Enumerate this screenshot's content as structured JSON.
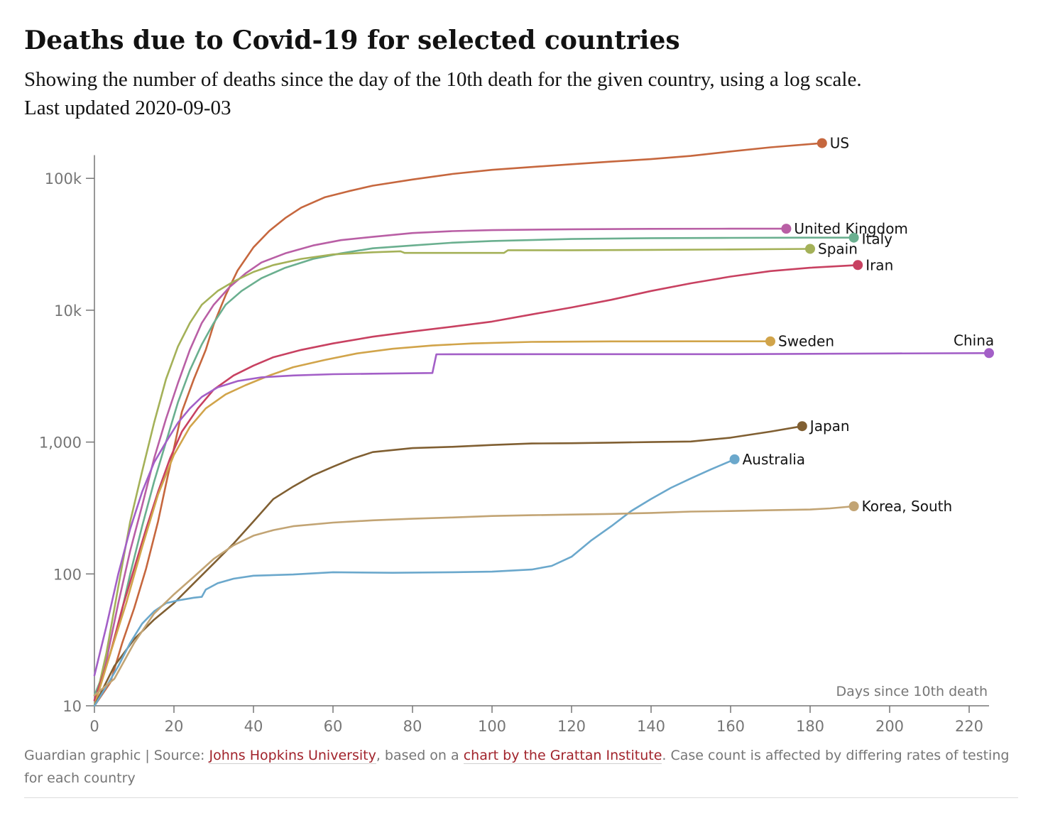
{
  "header": {
    "title": "Deaths due to Covid-19 for selected countries",
    "subtitle": "Showing the number of deaths since the day of the 10th death for the given country, using a log scale.",
    "updated": "Last updated 2020-09-03"
  },
  "footer": {
    "prefix": "Guardian graphic | Source: ",
    "source_link": "Johns Hopkins University",
    "middle": ", based on a ",
    "chart_link": "chart by the Grattan Institute",
    "suffix": ". Case count is affected by differing rates of testing for each country"
  },
  "chart_data": {
    "type": "line",
    "title": "Deaths due to Covid-19 for selected countries",
    "xlabel": "Days since 10th death",
    "ylabel": "",
    "xlim": [
      0,
      225
    ],
    "ylim": [
      10,
      150000
    ],
    "yscale": "log",
    "grid": false,
    "x_ticks": [
      0,
      20,
      40,
      60,
      80,
      100,
      120,
      140,
      160,
      180,
      200,
      220
    ],
    "x_tick_labels": [
      "0",
      "20",
      "40",
      "60",
      "80",
      "100",
      "120",
      "140",
      "160",
      "180",
      "200",
      "220"
    ],
    "y_ticks": [
      10,
      100,
      1000,
      10000,
      100000
    ],
    "y_tick_labels": [
      "10",
      "100",
      "1,000",
      "10k",
      "100k"
    ],
    "series": [
      {
        "name": "US",
        "color": "#c6673e",
        "label_pos": "right",
        "points": [
          [
            0,
            10
          ],
          [
            4,
            15
          ],
          [
            7,
            30
          ],
          [
            10,
            55
          ],
          [
            13,
            110
          ],
          [
            16,
            250
          ],
          [
            18,
            480
          ],
          [
            20,
            900
          ],
          [
            22,
            1700
          ],
          [
            25,
            3000
          ],
          [
            28,
            5000
          ],
          [
            30,
            7800
          ],
          [
            33,
            13000
          ],
          [
            36,
            20000
          ],
          [
            40,
            30000
          ],
          [
            44,
            40000
          ],
          [
            48,
            50000
          ],
          [
            52,
            60000
          ],
          [
            58,
            72000
          ],
          [
            64,
            80000
          ],
          [
            70,
            88000
          ],
          [
            80,
            98000
          ],
          [
            90,
            108000
          ],
          [
            100,
            116000
          ],
          [
            110,
            122000
          ],
          [
            120,
            128000
          ],
          [
            130,
            134000
          ],
          [
            140,
            140000
          ],
          [
            150,
            148000
          ],
          [
            160,
            160000
          ],
          [
            170,
            172000
          ],
          [
            183,
            185000
          ]
        ]
      },
      {
        "name": "United Kingdom",
        "color": "#b95fa5",
        "label_pos": "right",
        "points": [
          [
            0,
            11
          ],
          [
            3,
            22
          ],
          [
            6,
            60
          ],
          [
            9,
            150
          ],
          [
            12,
            330
          ],
          [
            15,
            750
          ],
          [
            18,
            1500
          ],
          [
            21,
            2800
          ],
          [
            24,
            5000
          ],
          [
            27,
            8000
          ],
          [
            30,
            11000
          ],
          [
            34,
            15000
          ],
          [
            38,
            19000
          ],
          [
            42,
            23000
          ],
          [
            48,
            27000
          ],
          [
            55,
            31000
          ],
          [
            62,
            34000
          ],
          [
            70,
            36000
          ],
          [
            80,
            38500
          ],
          [
            90,
            39800
          ],
          [
            100,
            40500
          ],
          [
            120,
            41100
          ],
          [
            140,
            41400
          ],
          [
            160,
            41500
          ],
          [
            174,
            41500
          ]
        ]
      },
      {
        "name": "Italy",
        "color": "#6aaf8f",
        "label_pos": "right-offset",
        "points": [
          [
            0,
            12
          ],
          [
            3,
            20
          ],
          [
            6,
            40
          ],
          [
            9,
            100
          ],
          [
            12,
            230
          ],
          [
            15,
            500
          ],
          [
            18,
            1000
          ],
          [
            21,
            2000
          ],
          [
            24,
            3500
          ],
          [
            27,
            5500
          ],
          [
            30,
            8000
          ],
          [
            33,
            11000
          ],
          [
            37,
            14000
          ],
          [
            42,
            17500
          ],
          [
            48,
            21000
          ],
          [
            55,
            24500
          ],
          [
            62,
            27000
          ],
          [
            70,
            29500
          ],
          [
            80,
            31000
          ],
          [
            90,
            32500
          ],
          [
            100,
            33500
          ],
          [
            120,
            34700
          ],
          [
            140,
            35200
          ],
          [
            160,
            35400
          ],
          [
            180,
            35500
          ],
          [
            191,
            35500
          ]
        ]
      },
      {
        "name": "Spain",
        "color": "#a4b158",
        "label_pos": "right",
        "points": [
          [
            0,
            10
          ],
          [
            3,
            25
          ],
          [
            6,
            80
          ],
          [
            9,
            250
          ],
          [
            12,
            600
          ],
          [
            15,
            1400
          ],
          [
            18,
            3000
          ],
          [
            21,
            5300
          ],
          [
            24,
            8000
          ],
          [
            27,
            11000
          ],
          [
            31,
            14000
          ],
          [
            35,
            16500
          ],
          [
            40,
            19500
          ],
          [
            45,
            22000
          ],
          [
            52,
            24500
          ],
          [
            60,
            26500
          ],
          [
            70,
            27500
          ],
          [
            77,
            28000
          ],
          [
            78,
            27200
          ],
          [
            103,
            27200
          ],
          [
            104,
            28500
          ],
          [
            120,
            28500
          ],
          [
            140,
            28700
          ],
          [
            160,
            28900
          ],
          [
            180,
            29200
          ]
        ]
      },
      {
        "name": "Iran",
        "color": "#c84161",
        "label_pos": "right",
        "points": [
          [
            0,
            11
          ],
          [
            4,
            25
          ],
          [
            7,
            55
          ],
          [
            10,
            110
          ],
          [
            13,
            220
          ],
          [
            16,
            420
          ],
          [
            19,
            750
          ],
          [
            22,
            1200
          ],
          [
            26,
            1800
          ],
          [
            30,
            2500
          ],
          [
            35,
            3200
          ],
          [
            40,
            3800
          ],
          [
            45,
            4400
          ],
          [
            52,
            5000
          ],
          [
            60,
            5600
          ],
          [
            70,
            6300
          ],
          [
            80,
            6900
          ],
          [
            90,
            7500
          ],
          [
            100,
            8200
          ],
          [
            110,
            9300
          ],
          [
            120,
            10500
          ],
          [
            130,
            12000
          ],
          [
            140,
            14000
          ],
          [
            150,
            16000
          ],
          [
            160,
            18000
          ],
          [
            170,
            19800
          ],
          [
            180,
            21000
          ],
          [
            192,
            22000
          ]
        ]
      },
      {
        "name": "Sweden",
        "color": "#d1a44a",
        "label_pos": "right",
        "points": [
          [
            0,
            10
          ],
          [
            4,
            25
          ],
          [
            8,
            60
          ],
          [
            12,
            160
          ],
          [
            16,
            400
          ],
          [
            20,
            800
          ],
          [
            24,
            1300
          ],
          [
            28,
            1800
          ],
          [
            33,
            2300
          ],
          [
            38,
            2700
          ],
          [
            44,
            3200
          ],
          [
            50,
            3700
          ],
          [
            58,
            4200
          ],
          [
            66,
            4700
          ],
          [
            75,
            5100
          ],
          [
            85,
            5400
          ],
          [
            95,
            5600
          ],
          [
            110,
            5750
          ],
          [
            130,
            5800
          ],
          [
            150,
            5810
          ],
          [
            170,
            5810
          ]
        ]
      },
      {
        "name": "China",
        "color": "#a35fc7",
        "label_pos": "above",
        "points": [
          [
            0,
            17
          ],
          [
            3,
            40
          ],
          [
            6,
            100
          ],
          [
            9,
            220
          ],
          [
            12,
            420
          ],
          [
            15,
            700
          ],
          [
            18,
            1000
          ],
          [
            21,
            1400
          ],
          [
            24,
            1800
          ],
          [
            27,
            2200
          ],
          [
            31,
            2600
          ],
          [
            36,
            2900
          ],
          [
            42,
            3100
          ],
          [
            50,
            3200
          ],
          [
            60,
            3270
          ],
          [
            70,
            3300
          ],
          [
            85,
            3340
          ],
          [
            86,
            4630
          ],
          [
            120,
            4640
          ],
          [
            160,
            4640
          ],
          [
            200,
            4700
          ],
          [
            225,
            4730
          ]
        ]
      },
      {
        "name": "Japan",
        "color": "#805f32",
        "label_pos": "right",
        "points": [
          [
            0,
            10
          ],
          [
            5,
            20
          ],
          [
            10,
            32
          ],
          [
            15,
            45
          ],
          [
            20,
            60
          ],
          [
            25,
            85
          ],
          [
            30,
            120
          ],
          [
            35,
            170
          ],
          [
            40,
            250
          ],
          [
            45,
            370
          ],
          [
            50,
            460
          ],
          [
            55,
            560
          ],
          [
            60,
            650
          ],
          [
            65,
            750
          ],
          [
            70,
            840
          ],
          [
            80,
            900
          ],
          [
            90,
            920
          ],
          [
            100,
            950
          ],
          [
            110,
            975
          ],
          [
            120,
            980
          ],
          [
            130,
            990
          ],
          [
            140,
            1000
          ],
          [
            150,
            1010
          ],
          [
            160,
            1080
          ],
          [
            170,
            1200
          ],
          [
            178,
            1320
          ]
        ]
      },
      {
        "name": "Australia",
        "color": "#6ba8cc",
        "label_pos": "right",
        "points": [
          [
            0,
            10
          ],
          [
            3,
            14
          ],
          [
            6,
            20
          ],
          [
            9,
            30
          ],
          [
            12,
            42
          ],
          [
            15,
            52
          ],
          [
            18,
            60
          ],
          [
            21,
            63
          ],
          [
            25,
            66
          ],
          [
            27,
            67
          ],
          [
            28,
            76
          ],
          [
            31,
            85
          ],
          [
            35,
            92
          ],
          [
            40,
            97
          ],
          [
            50,
            99
          ],
          [
            60,
            103
          ],
          [
            75,
            102
          ],
          [
            90,
            103
          ],
          [
            100,
            104
          ],
          [
            110,
            108
          ],
          [
            115,
            115
          ],
          [
            120,
            135
          ],
          [
            125,
            180
          ],
          [
            130,
            230
          ],
          [
            135,
            300
          ],
          [
            140,
            370
          ],
          [
            145,
            450
          ],
          [
            150,
            530
          ],
          [
            155,
            620
          ],
          [
            161,
            740
          ]
        ]
      },
      {
        "name": "Korea, South",
        "color": "#c2a474",
        "label_pos": "right",
        "points": [
          [
            0,
            12
          ],
          [
            5,
            16
          ],
          [
            10,
            30
          ],
          [
            15,
            50
          ],
          [
            20,
            70
          ],
          [
            25,
            95
          ],
          [
            30,
            130
          ],
          [
            35,
            165
          ],
          [
            40,
            195
          ],
          [
            45,
            215
          ],
          [
            50,
            230
          ],
          [
            60,
            245
          ],
          [
            70,
            255
          ],
          [
            80,
            262
          ],
          [
            90,
            268
          ],
          [
            100,
            275
          ],
          [
            110,
            279
          ],
          [
            120,
            282
          ],
          [
            130,
            285
          ],
          [
            140,
            290
          ],
          [
            150,
            297
          ],
          [
            160,
            300
          ],
          [
            170,
            304
          ],
          [
            180,
            308
          ],
          [
            185,
            314
          ],
          [
            191,
            326
          ]
        ]
      }
    ]
  }
}
